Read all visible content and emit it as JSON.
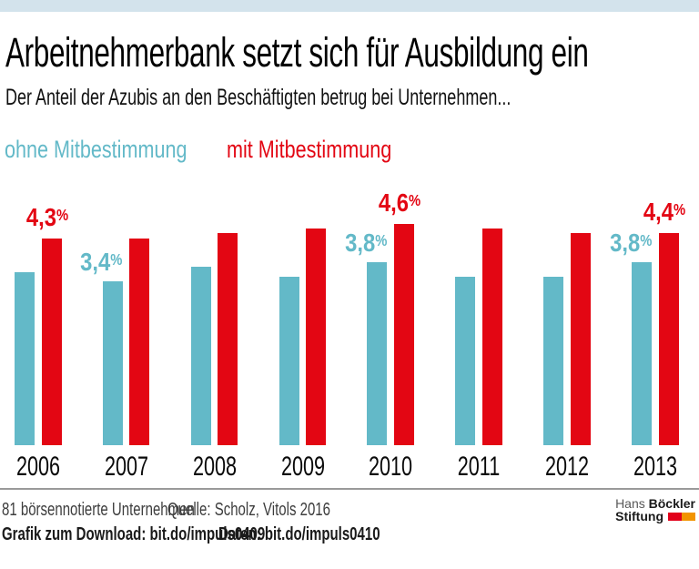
{
  "header": {
    "title": "Arbeitnehmerbank setzt sich für Ausbildung ein",
    "subtitle": "Der Anteil der Azubis an den Beschäftigten betrug bei Unternehmen..."
  },
  "chart_data": {
    "type": "bar",
    "categories": [
      "2006",
      "2007",
      "2008",
      "2009",
      "2010",
      "2011",
      "2012",
      "2013"
    ],
    "series": [
      {
        "name": "ohne Mitbestimmung",
        "color": "#63b9c8",
        "values": [
          3.6,
          3.4,
          3.7,
          3.5,
          3.8,
          3.5,
          3.5,
          3.8
        ],
        "labels": [
          "",
          "3,4%",
          "",
          "",
          "3,8%",
          "",
          "",
          "3,8%"
        ]
      },
      {
        "name": "mit Mitbestimmung",
        "color": "#e30613",
        "values": [
          4.3,
          4.3,
          4.4,
          4.5,
          4.6,
          4.5,
          4.4,
          4.4
        ],
        "labels": [
          "4,3%",
          "",
          "",
          "",
          "4,6%",
          "",
          "",
          "4,4%"
        ]
      }
    ],
    "unit": "%",
    "ylim": [
      0,
      5
    ],
    "grid": false,
    "axes_shown": false,
    "legend_position": "top-left"
  },
  "colors": {
    "blue": "#63b9c8",
    "red": "#e30613",
    "band": "#d3e3ec",
    "divider": "#9a9a9a",
    "footnote_gray": "#3d3d3d",
    "logo_red": "#e2001a",
    "logo_orange": "#f29400"
  },
  "footer": {
    "note": "81 börsennotierte Unternehmen",
    "source": "Quelle: Scholz, Vitols 2016",
    "download": "Grafik zum Download: bit.do/impuls0409",
    "data_link": "Daten: bit.do/impuls0410",
    "logo": {
      "name_regular": "Hans",
      "name_bold": "Böckler",
      "line2": "Stiftung"
    }
  }
}
